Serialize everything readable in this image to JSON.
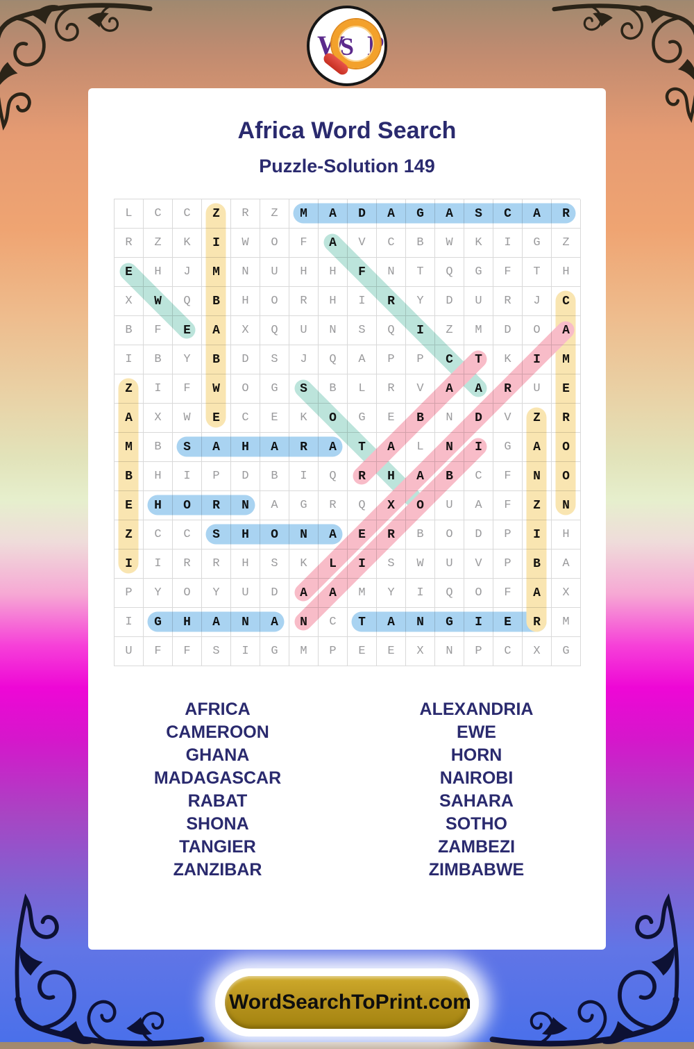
{
  "header": {
    "title": "Africa Word Search",
    "subtitle": "Puzzle-Solution 149"
  },
  "logo": {
    "letters": {
      "w": "W",
      "s": "S",
      "p": "P"
    }
  },
  "grid": {
    "size": 16,
    "rows": [
      "LCCZRZMADAGASCAR",
      "RZKIWOFAVCBWKIGZ",
      "EHJMNUHHFNTQGFTH",
      "XWQBHORHIRYDURJC",
      "BFEAXQUNSQIZMDOA",
      "IBYBDSJQAPPCTKIM",
      "ZIFWOGSBLRVAARUE",
      "AXWECEKOGEBNDVZR",
      "MBSAHARATALNIGAO",
      "BHIPDBIQRHABCFNO",
      "EHORNAGRQXOUAFZN",
      "ZCCSHONAERBODPIH",
      "IIRRHSKLISWUVPBA",
      "PYOYUDAAMYIQOFAX",
      "IGHANANCTANGIERM",
      "UFFSIGMPEEXNPCXG"
    ]
  },
  "solutions": [
    {
      "word": "MADAGASCAR",
      "color": "blue",
      "from": {
        "row": 1,
        "col": 7
      },
      "to": {
        "row": 1,
        "col": 16
      }
    },
    {
      "word": "SAHARA",
      "color": "blue",
      "from": {
        "row": 9,
        "col": 3
      },
      "to": {
        "row": 9,
        "col": 8
      }
    },
    {
      "word": "HORN",
      "color": "blue",
      "from": {
        "row": 11,
        "col": 2
      },
      "to": {
        "row": 11,
        "col": 5
      }
    },
    {
      "word": "SHONA",
      "color": "blue",
      "from": {
        "row": 12,
        "col": 4
      },
      "to": {
        "row": 12,
        "col": 8
      }
    },
    {
      "word": "GHANA",
      "color": "blue",
      "from": {
        "row": 15,
        "col": 2
      },
      "to": {
        "row": 15,
        "col": 6
      }
    },
    {
      "word": "TANGIER",
      "color": "blue",
      "from": {
        "row": 15,
        "col": 9
      },
      "to": {
        "row": 15,
        "col": 15
      }
    },
    {
      "word": "ZIMBABWE",
      "color": "yellow",
      "from": {
        "row": 1,
        "col": 4
      },
      "to": {
        "row": 8,
        "col": 4
      }
    },
    {
      "word": "ZAMBEZI",
      "color": "yellow",
      "from": {
        "row": 7,
        "col": 1
      },
      "to": {
        "row": 13,
        "col": 1
      }
    },
    {
      "word": "CAMEROON",
      "color": "yellow",
      "from": {
        "row": 4,
        "col": 16
      },
      "to": {
        "row": 11,
        "col": 16
      }
    },
    {
      "word": "ZANZIBAR",
      "color": "yellow",
      "from": {
        "row": 8,
        "col": 15
      },
      "to": {
        "row": 15,
        "col": 15
      }
    },
    {
      "word": "AFRICA",
      "color": "teal",
      "from": {
        "row": 2,
        "col": 8
      },
      "to": {
        "row": 7,
        "col": 13
      }
    },
    {
      "word": "EWE",
      "color": "teal",
      "from": {
        "row": 3,
        "col": 1
      },
      "to": {
        "row": 5,
        "col": 3
      }
    },
    {
      "word": "SOTHO",
      "color": "teal",
      "from": {
        "row": 7,
        "col": 7
      },
      "to": {
        "row": 11,
        "col": 11
      }
    },
    {
      "word": "ALEXANDRIA",
      "color": "pink",
      "from": {
        "row": 14,
        "col": 7
      },
      "to": {
        "row": 5,
        "col": 16
      }
    },
    {
      "word": "RABAT",
      "color": "pink",
      "from": {
        "row": 10,
        "col": 9
      },
      "to": {
        "row": 6,
        "col": 13
      }
    },
    {
      "word": "NAIROBI",
      "color": "pink",
      "from": {
        "row": 15,
        "col": 7
      },
      "to": {
        "row": 9,
        "col": 13
      }
    }
  ],
  "word_list": {
    "left": [
      "AFRICA",
      "CAMEROON",
      "GHANA",
      "MADAGASCAR",
      "RABAT",
      "SHONA",
      "TANGIER",
      "ZANZIBAR"
    ],
    "right": [
      "ALEXANDRIA",
      "EWE",
      "HORN",
      "NAIROBI",
      "SAHARA",
      "SOTHO",
      "ZAMBEZI",
      "ZIMBABWE"
    ]
  },
  "footer": {
    "button_label": "WordSearchToPrint.com"
  },
  "colors": {
    "highlights": {
      "blue": "#a9d3f1",
      "yellow": "#f9e5b1",
      "teal": "#bce4db",
      "pink": "#f8bcc8"
    },
    "navy_text": "#2a2a6e",
    "letter_gray": "#9a9a9c",
    "letter_solution": "#161616",
    "button_gold": "#b9941f"
  }
}
